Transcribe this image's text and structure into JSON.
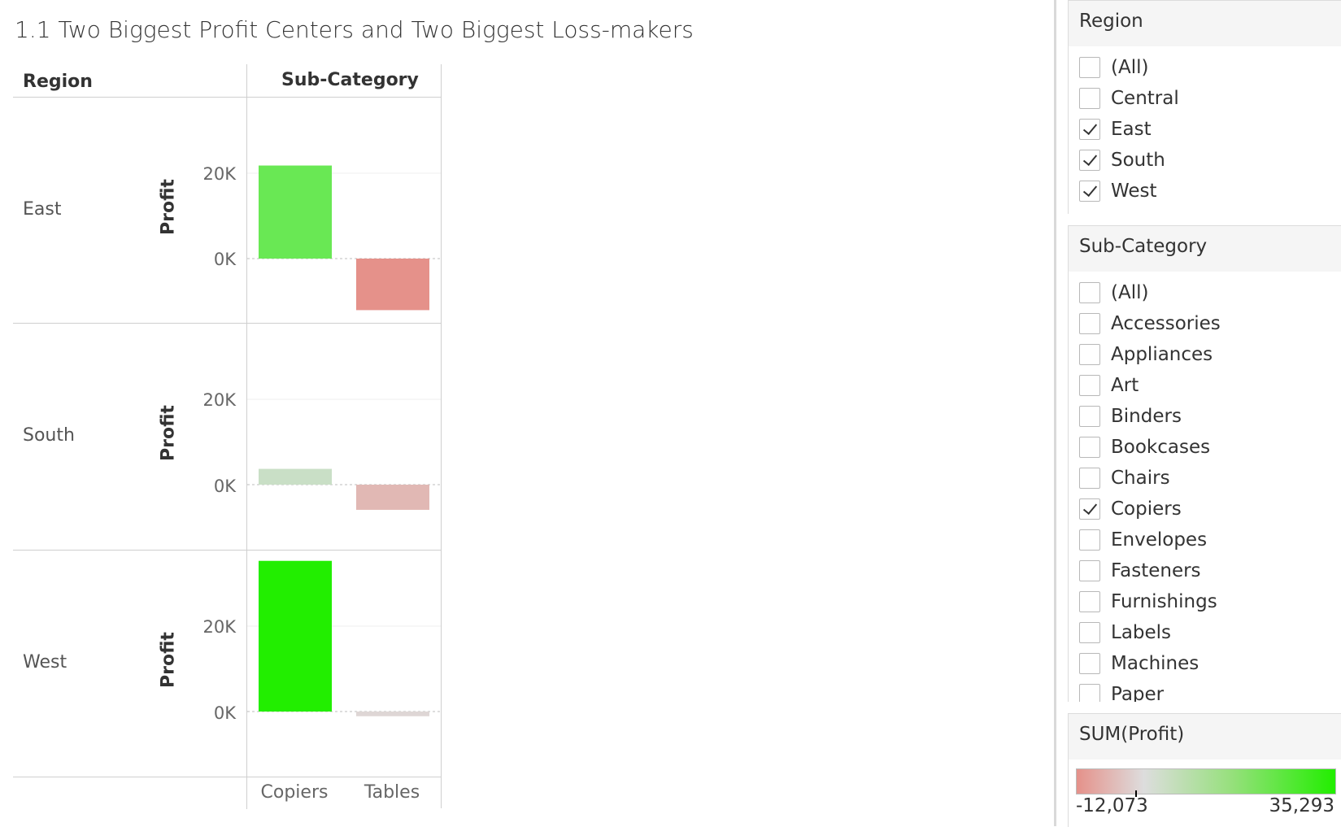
{
  "title": "1.1 Two Biggest Profit Centers and Two Biggest Loss-makers",
  "headers": {
    "row": "Region",
    "col": "Sub-Category"
  },
  "chart_data": {
    "type": "bar",
    "categories": [
      "Copiers",
      "Tables"
    ],
    "rows": [
      {
        "region": "East",
        "values": [
          21800,
          -12073
        ]
      },
      {
        "region": "South",
        "values": [
          3700,
          -5900
        ]
      },
      {
        "region": "West",
        "values": [
          35293,
          -1100
        ]
      }
    ],
    "ylabel": "Profit",
    "yticks": [
      "20K",
      "0K"
    ],
    "ylim": [
      -15000,
      38000
    ],
    "color_scale": {
      "min": -12073,
      "max": 35293,
      "low_color": "#e5918a",
      "mid_color": "#dddddd",
      "high_color": "#22ee00"
    },
    "grid": true
  },
  "filters": {
    "region": {
      "title": "Region",
      "items": [
        {
          "label": "(All)",
          "checked": false
        },
        {
          "label": "Central",
          "checked": false
        },
        {
          "label": "East",
          "checked": true
        },
        {
          "label": "South",
          "checked": true
        },
        {
          "label": "West",
          "checked": true
        }
      ]
    },
    "subcategory": {
      "title": "Sub-Category",
      "items": [
        {
          "label": "(All)",
          "checked": false
        },
        {
          "label": "Accessories",
          "checked": false
        },
        {
          "label": "Appliances",
          "checked": false
        },
        {
          "label": "Art",
          "checked": false
        },
        {
          "label": "Binders",
          "checked": false
        },
        {
          "label": "Bookcases",
          "checked": false
        },
        {
          "label": "Chairs",
          "checked": false
        },
        {
          "label": "Copiers",
          "checked": true
        },
        {
          "label": "Envelopes",
          "checked": false
        },
        {
          "label": "Fasteners",
          "checked": false
        },
        {
          "label": "Furnishings",
          "checked": false
        },
        {
          "label": "Labels",
          "checked": false
        },
        {
          "label": "Machines",
          "checked": false
        },
        {
          "label": "Paper",
          "checked": false
        }
      ]
    }
  },
  "legend": {
    "title": "SUM(Profit)",
    "min_label": "-12,073",
    "max_label": "35,293"
  }
}
